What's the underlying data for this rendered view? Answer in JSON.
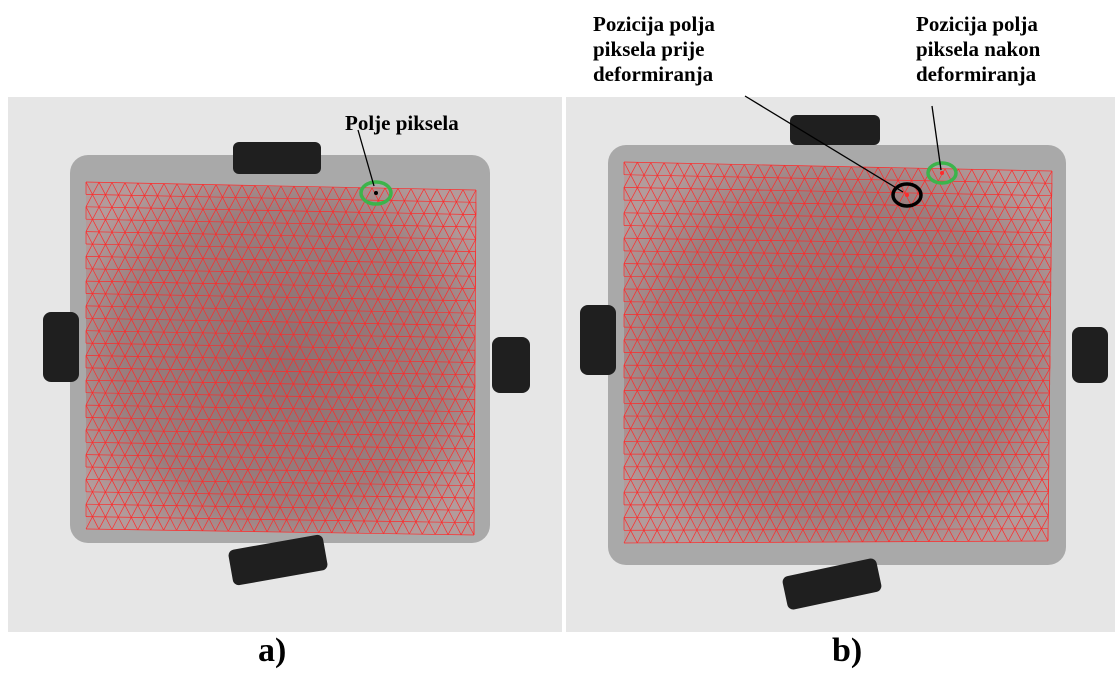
{
  "panels": [
    {
      "id": "a",
      "caption": "a)",
      "label": "Polje piksela"
    },
    {
      "id": "b",
      "caption": "b)",
      "label_before": [
        "Pozicija polja",
        "piksela prije",
        "deformiranja"
      ],
      "label_after": [
        "Pozicija polja",
        "piksela nakon",
        "deformiranja"
      ]
    }
  ],
  "colors": {
    "mesh": "#ff2a2a",
    "marker_green": "#3cb44b",
    "marker_black": "#000000",
    "specimen": "#9b7c7c",
    "background": "#e6e6e6",
    "grip": "#1f1f1f"
  }
}
